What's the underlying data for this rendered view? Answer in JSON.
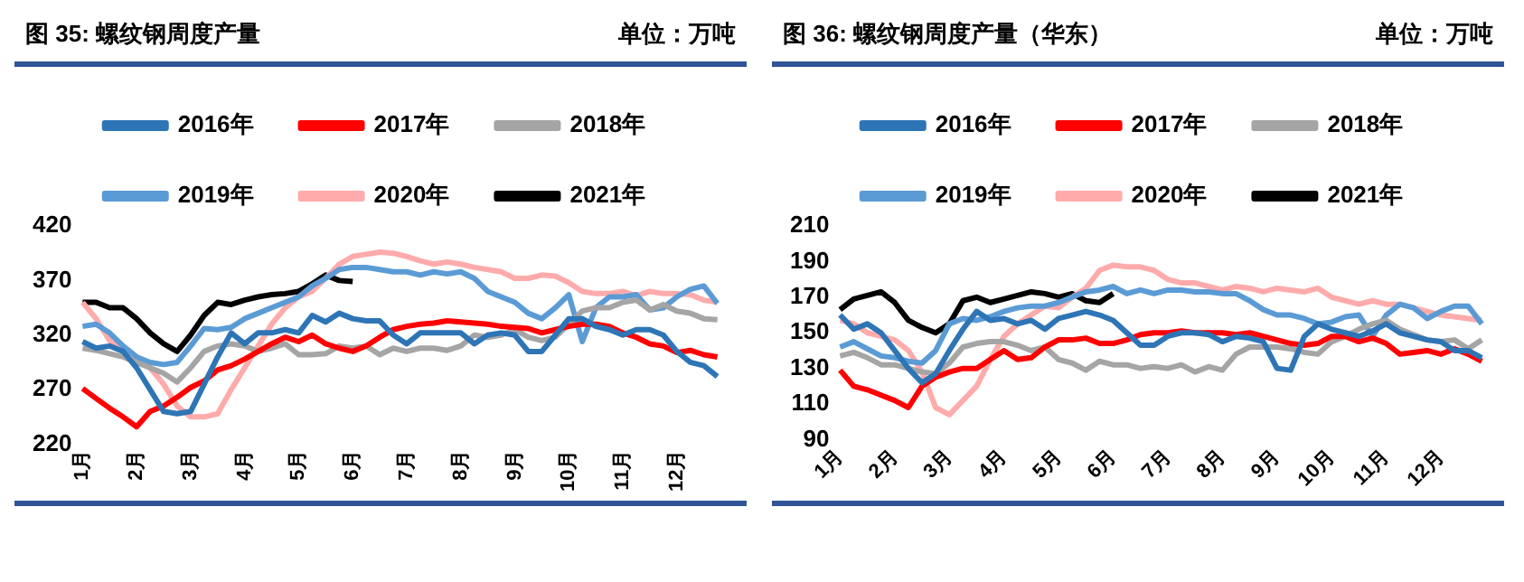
{
  "chart_data": [
    {
      "type": "line",
      "title": "图 35:  螺纹钢周度产量",
      "subtitle": "单位：万吨",
      "categories": [
        "1月",
        null,
        null,
        null,
        "2月",
        null,
        null,
        null,
        "3月",
        null,
        null,
        null,
        "4月",
        null,
        null,
        null,
        "5月",
        null,
        null,
        null,
        "6月",
        null,
        null,
        null,
        "7月",
        null,
        null,
        null,
        "8月",
        null,
        null,
        null,
        "9月",
        null,
        null,
        null,
        "10月",
        null,
        null,
        null,
        "11月",
        null,
        null,
        null,
        "12月",
        null,
        null,
        null
      ],
      "series": [
        {
          "name": "2016年",
          "color": "#2e75b6",
          "values": [
            314,
            308,
            310,
            305,
            290,
            270,
            250,
            248,
            250,
            275,
            300,
            322,
            312,
            322,
            322,
            325,
            322,
            338,
            332,
            340,
            335,
            333,
            333,
            320,
            312,
            322,
            322,
            322,
            322,
            312,
            320,
            322,
            320,
            305,
            305,
            320,
            335,
            335,
            328,
            325,
            320,
            325,
            325,
            320,
            305,
            295,
            292,
            282
          ]
        },
        {
          "name": "2017年",
          "color": "#ff0000",
          "values": [
            271,
            262,
            253,
            245,
            236,
            250,
            255,
            263,
            272,
            278,
            288,
            292,
            298,
            305,
            312,
            318,
            314,
            320,
            312,
            308,
            305,
            310,
            318,
            325,
            328,
            330,
            331,
            333,
            332,
            331,
            330,
            328,
            327,
            326,
            322,
            325,
            328,
            330,
            330,
            328,
            322,
            318,
            312,
            310,
            304,
            306,
            302,
            300
          ]
        },
        {
          "name": "2018年",
          "color": "#a5a5a5",
          "values": [
            308,
            306,
            303,
            300,
            295,
            290,
            285,
            277,
            290,
            305,
            310,
            312,
            310,
            305,
            308,
            312,
            302,
            302,
            303,
            310,
            308,
            310,
            302,
            308,
            305,
            308,
            308,
            306,
            310,
            320,
            318,
            320,
            325,
            318,
            315,
            318,
            330,
            342,
            345,
            345,
            350,
            352,
            343,
            348,
            342,
            340,
            335,
            334
          ]
        },
        {
          "name": "2019年",
          "color": "#5b9bd5",
          "values": [
            328,
            330,
            322,
            310,
            300,
            295,
            293,
            295,
            310,
            326,
            325,
            327,
            335,
            340,
            345,
            350,
            355,
            365,
            372,
            380,
            382,
            382,
            380,
            378,
            378,
            375,
            378,
            376,
            378,
            372,
            360,
            355,
            350,
            340,
            335,
            345,
            357,
            314,
            345,
            355,
            355,
            357,
            343,
            345,
            355,
            362,
            365,
            349
          ]
        },
        {
          "name": "2020年",
          "color": "#ffabab",
          "values": [
            350,
            335,
            315,
            305,
            300,
            290,
            275,
            255,
            245,
            245,
            248,
            270,
            290,
            310,
            330,
            345,
            355,
            360,
            372,
            385,
            392,
            394,
            396,
            395,
            392,
            388,
            385,
            387,
            385,
            382,
            380,
            378,
            372,
            372,
            375,
            374,
            368,
            360,
            358,
            358,
            360,
            356,
            360,
            358,
            358,
            357,
            352,
            350
          ]
        },
        {
          "name": "2021年",
          "color": "#000000",
          "values": [
            350,
            350,
            345,
            345,
            335,
            322,
            312,
            305,
            320,
            338,
            350,
            348,
            352,
            355,
            357,
            358,
            360,
            367,
            375,
            370,
            369,
            null,
            null,
            null,
            null,
            null,
            null,
            null,
            null,
            null,
            null,
            null,
            null,
            null,
            null,
            null,
            null,
            null,
            null,
            null,
            null,
            null,
            null,
            null,
            null,
            null,
            null,
            null
          ]
        }
      ],
      "ylim": [
        220,
        420
      ],
      "yticks": [
        220,
        270,
        320,
        370,
        420
      ],
      "grid": false,
      "legend": "top",
      "marker": "none",
      "line_style": "solid"
    },
    {
      "type": "line",
      "title": "图 36:  螺纹钢周度产量（华东）",
      "subtitle": "单位：万吨",
      "categories": [
        "1月",
        null,
        null,
        null,
        "2月",
        null,
        null,
        null,
        "3月",
        null,
        null,
        null,
        "4月",
        null,
        null,
        null,
        "5月",
        null,
        null,
        null,
        "6月",
        null,
        null,
        null,
        "7月",
        null,
        null,
        null,
        "8月",
        null,
        null,
        null,
        "9月",
        null,
        null,
        null,
        "10月",
        null,
        null,
        null,
        "11月",
        null,
        null,
        null,
        "12月",
        null,
        null,
        null
      ],
      "series": [
        {
          "name": "2016年",
          "color": "#2e75b6",
          "values": [
            160,
            152,
            155,
            150,
            140,
            130,
            122,
            127,
            140,
            152,
            162,
            157,
            158,
            155,
            157,
            152,
            158,
            160,
            162,
            160,
            157,
            150,
            143,
            143,
            148,
            150,
            150,
            149,
            145,
            148,
            147,
            145,
            130,
            129,
            148,
            155,
            152,
            150,
            148,
            151,
            155,
            150,
            148,
            146,
            145,
            140,
            140,
            136
          ]
        },
        {
          "name": "2017年",
          "color": "#ff0000",
          "values": [
            129,
            120,
            118,
            115,
            112,
            108,
            120,
            125,
            128,
            130,
            130,
            135,
            140,
            135,
            136,
            142,
            146,
            146,
            147,
            144,
            144,
            146,
            149,
            150,
            150,
            151,
            150,
            150,
            150,
            149,
            150,
            148,
            146,
            144,
            143,
            144,
            148,
            148,
            145,
            147,
            144,
            138,
            139,
            140,
            138,
            141,
            138,
            134
          ]
        },
        {
          "name": "2018年",
          "color": "#a5a5a5",
          "values": [
            137,
            139,
            136,
            132,
            132,
            130,
            128,
            127,
            133,
            142,
            144,
            145,
            145,
            143,
            140,
            142,
            135,
            133,
            129,
            134,
            132,
            132,
            130,
            131,
            130,
            132,
            128,
            131,
            129,
            138,
            142,
            142,
            142,
            141,
            139,
            138,
            145,
            148,
            152,
            155,
            157,
            152,
            149,
            146,
            145,
            146,
            141,
            146
          ]
        },
        {
          "name": "2019年",
          "color": "#5b9bd5",
          "values": [
            142,
            145,
            141,
            137,
            136,
            134,
            133,
            140,
            155,
            158,
            157,
            159,
            162,
            164,
            165,
            165,
            167,
            170,
            173,
            174,
            176,
            172,
            174,
            172,
            174,
            174,
            173,
            173,
            172,
            172,
            168,
            163,
            160,
            160,
            158,
            155,
            156,
            159,
            160,
            148,
            160,
            166,
            164,
            158,
            162,
            165,
            165,
            155
          ]
        },
        {
          "name": "2020年",
          "color": "#ffabab",
          "values": [
            157,
            155,
            150,
            148,
            146,
            140,
            128,
            108,
            104,
            112,
            120,
            135,
            148,
            155,
            160,
            165,
            164,
            170,
            175,
            185,
            188,
            187,
            187,
            185,
            180,
            178,
            178,
            176,
            174,
            176,
            175,
            173,
            175,
            174,
            173,
            175,
            170,
            168,
            166,
            168,
            166,
            166,
            164,
            162,
            160,
            159,
            158,
            157
          ]
        },
        {
          "name": "2021年",
          "color": "#000000",
          "values": [
            163,
            169,
            171,
            173,
            167,
            157,
            153,
            150,
            155,
            168,
            170,
            167,
            169,
            171,
            173,
            172,
            170,
            172,
            168,
            167,
            172,
            null,
            null,
            null,
            null,
            null,
            null,
            null,
            null,
            null,
            null,
            null,
            null,
            null,
            null,
            null,
            null,
            null,
            null,
            null,
            null,
            null,
            null,
            null,
            null,
            null,
            null,
            null
          ]
        }
      ],
      "ylim": [
        90,
        210
      ],
      "yticks": [
        90,
        110,
        130,
        150,
        170,
        190,
        210
      ],
      "grid": false,
      "legend": "top",
      "marker": "none",
      "line_style": "solid"
    }
  ]
}
